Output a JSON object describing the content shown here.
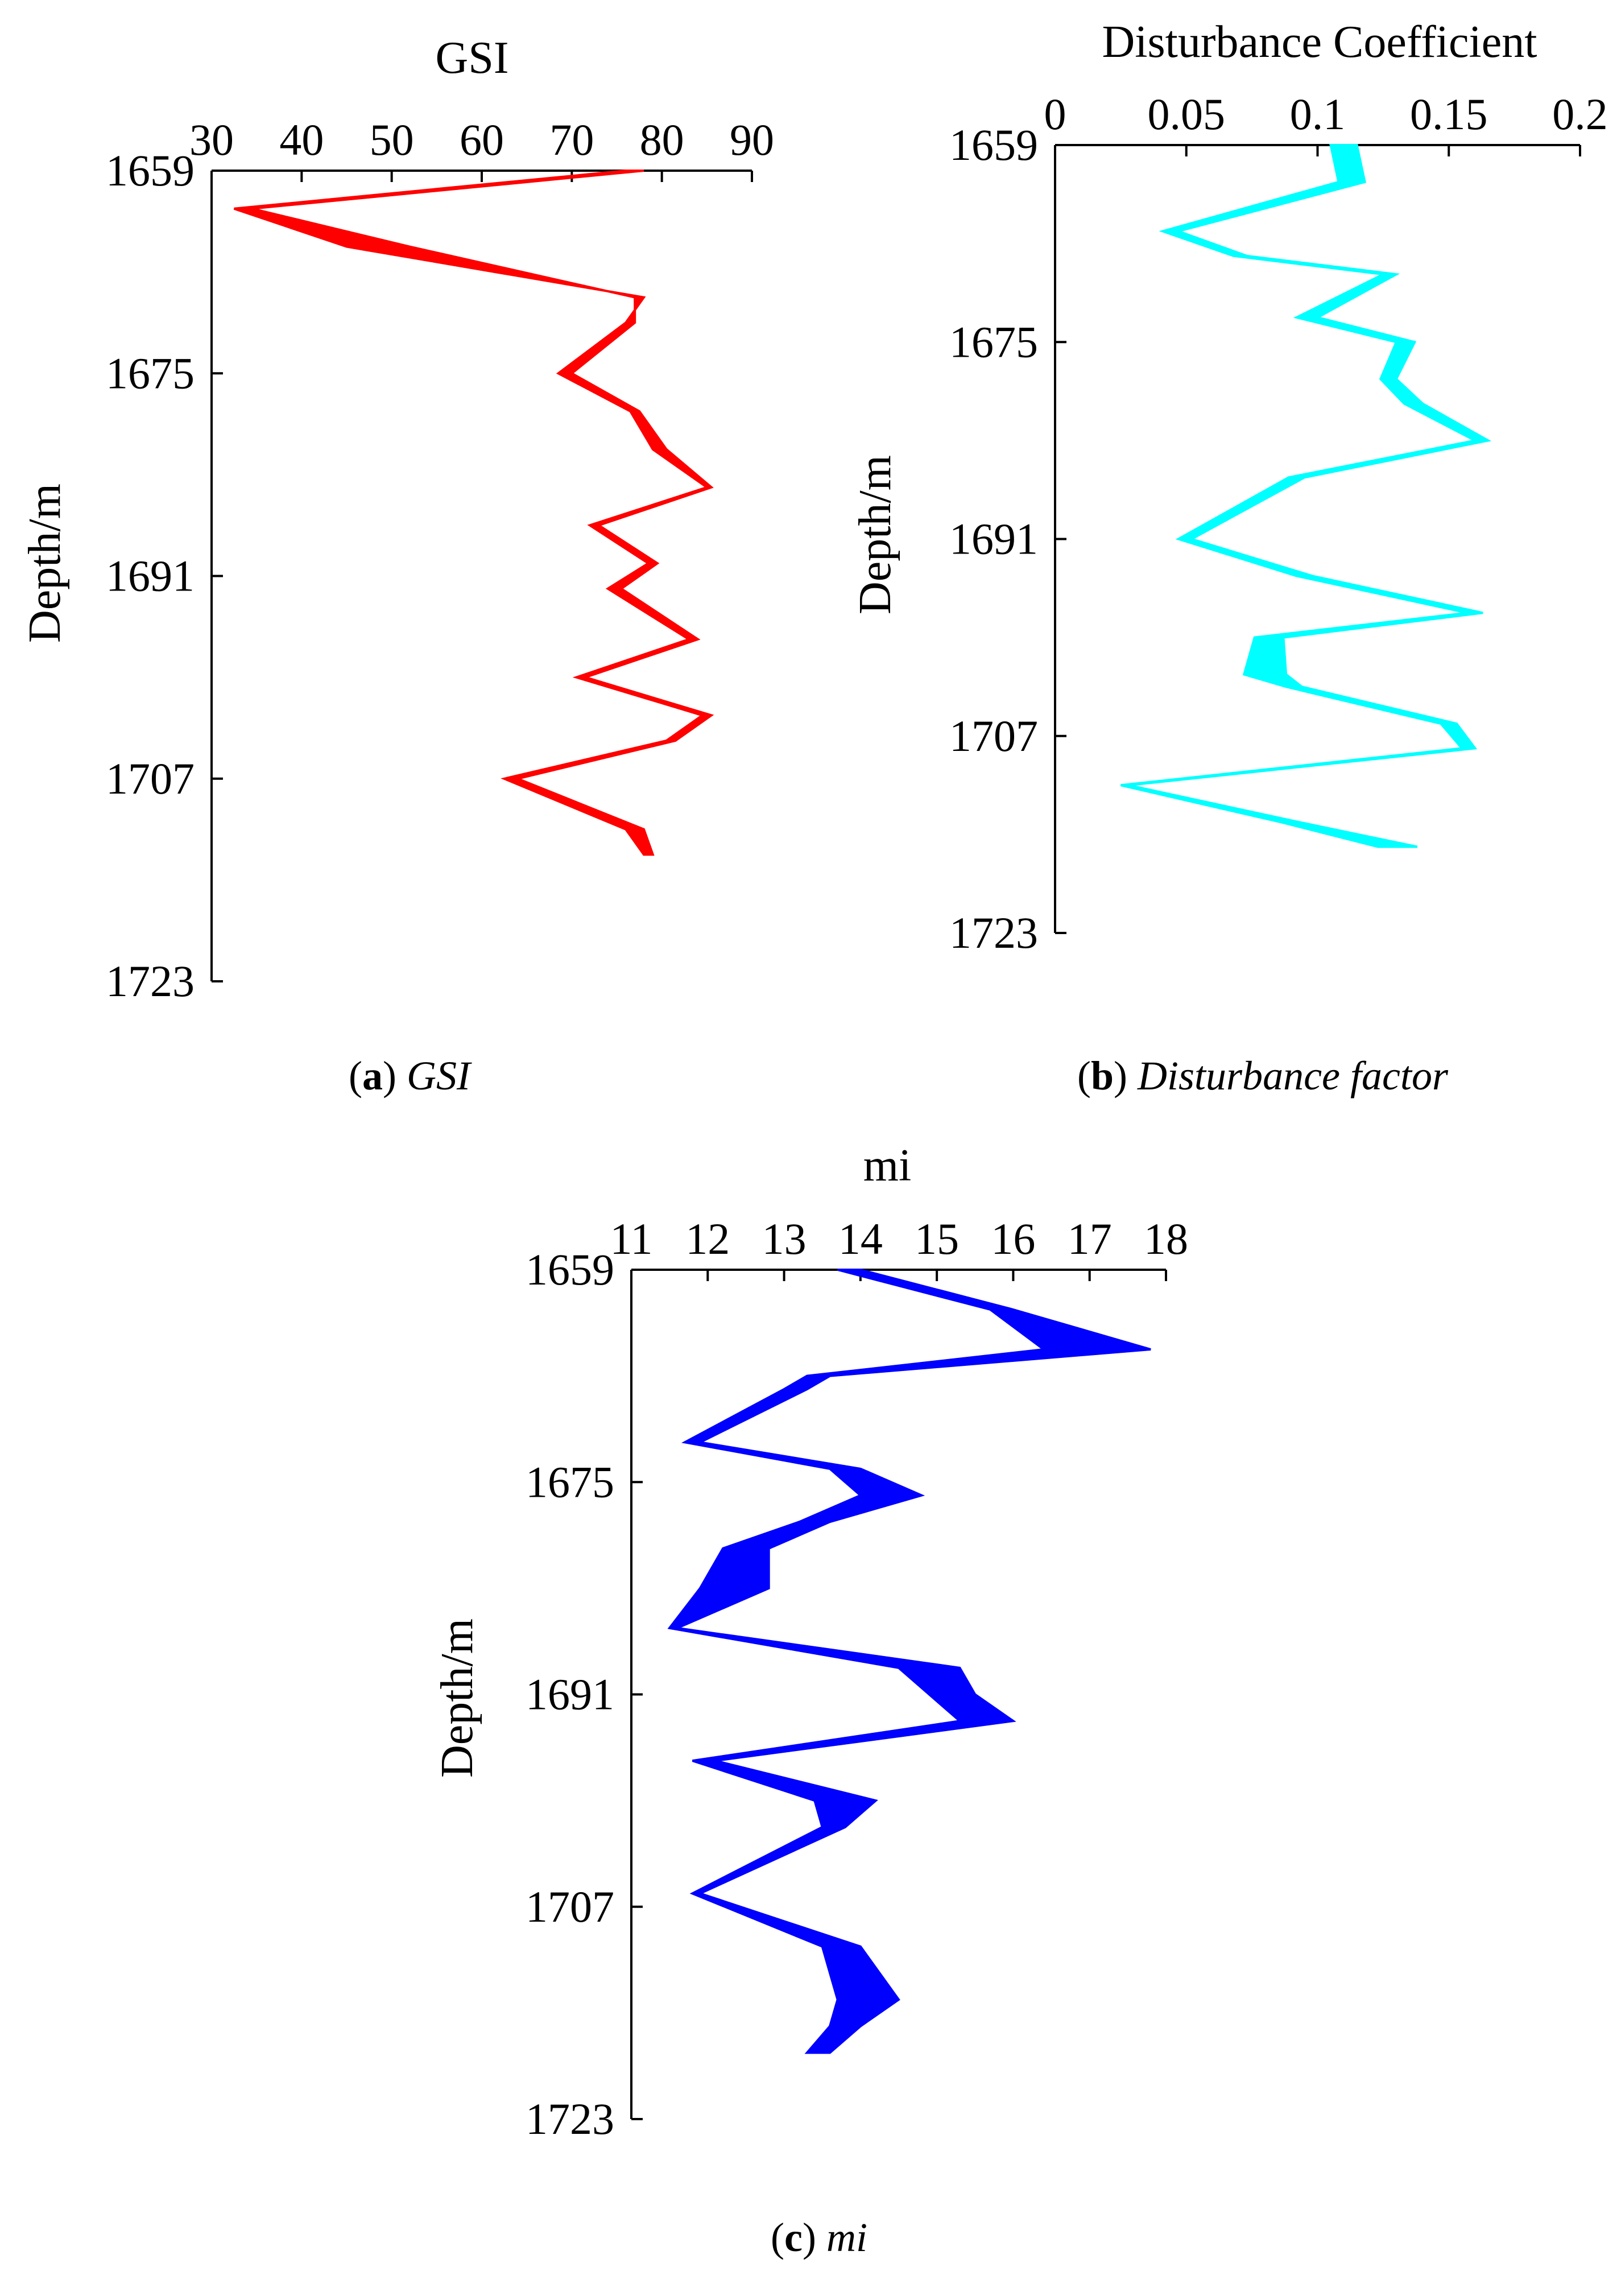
{
  "chart_data": [
    {
      "id": "a",
      "type": "area",
      "xlabel": "GSI",
      "ylabel": "Depth/m",
      "xlim": [
        30,
        90
      ],
      "ylim": [
        1659,
        1723
      ],
      "x_ticks": [
        "30",
        "40",
        "50",
        "60",
        "70",
        "80",
        "90"
      ],
      "y_ticks": [
        "1659",
        "1675",
        "1691",
        "1707",
        "1723"
      ],
      "caption_letter": "a",
      "caption_text": "GSI",
      "color": "#ff0000",
      "series": [
        {
          "values": [
            [
              1659,
              76
            ],
            [
              1662,
              32.5
            ],
            [
              1665,
              45
            ],
            [
              1669,
              78
            ],
            [
              1671,
              76
            ],
            [
              1675,
              68.5
            ],
            [
              1678,
              76.5
            ],
            [
              1681,
              79
            ],
            [
              1684,
              85
            ],
            [
              1687,
              72
            ],
            [
              1690,
              78.5
            ],
            [
              1692,
              74
            ],
            [
              1696,
              83
            ],
            [
              1699,
              70.5
            ],
            [
              1702,
              84.5
            ],
            [
              1704,
              80.5
            ],
            [
              1707,
              62.5
            ],
            [
              1711,
              76
            ],
            [
              1713,
              78
            ]
          ]
        },
        {
          "values": [
            [
              1659,
              78
            ],
            [
              1662,
              34.5
            ],
            [
              1665,
              52
            ],
            [
              1669,
              77
            ],
            [
              1671,
              77
            ],
            [
              1675,
              70
            ],
            [
              1678,
              77.5
            ],
            [
              1681,
              80.5
            ],
            [
              1684,
              85.5
            ],
            [
              1687,
              73
            ],
            [
              1690,
              79.5
            ],
            [
              1692,
              75.5
            ],
            [
              1696,
              84
            ],
            [
              1699,
              71.5
            ],
            [
              1702,
              85.5
            ],
            [
              1704,
              81.5
            ],
            [
              1707,
              64
            ],
            [
              1711,
              78
            ],
            [
              1713,
              79
            ]
          ]
        }
      ]
    },
    {
      "id": "b",
      "type": "area",
      "xlabel": "Disturbance Coefficient",
      "ylabel": "Depth/m",
      "xlim": [
        0,
        0.2
      ],
      "ylim": [
        1659,
        1723
      ],
      "x_ticks": [
        "0",
        "0.05",
        "0.1",
        "0.15",
        "0.2"
      ],
      "y_ticks": [
        "1659",
        "1675",
        "1691",
        "1707",
        "1723"
      ],
      "caption_letter": "b",
      "caption_text": "Disturbance factor",
      "color": "#00ffff",
      "series": [
        {
          "values": [
            [
              1659,
              0.105
            ],
            [
              1662,
              0.108
            ],
            [
              1666,
              0.041
            ],
            [
              1668,
              0.068
            ],
            [
              1669.5,
              0.125
            ],
            [
              1673,
              0.092
            ],
            [
              1675,
              0.13
            ],
            [
              1678,
              0.124
            ],
            [
              1680,
              0.133
            ],
            [
              1683,
              0.16
            ],
            [
              1686,
              0.089
            ],
            [
              1691,
              0.047
            ],
            [
              1694,
              0.092
            ],
            [
              1697,
              0.157
            ],
            [
              1699,
              0.076
            ],
            [
              1702,
              0.072
            ],
            [
              1703,
              0.088
            ],
            [
              1706,
              0.147
            ],
            [
              1708,
              0.155
            ],
            [
              1711,
              0.025
            ],
            [
              1714,
              0.086
            ],
            [
              1716,
              0.123
            ]
          ]
        },
        {
          "values": [
            [
              1659,
              0.115
            ],
            [
              1662,
              0.118
            ],
            [
              1666,
              0.047
            ],
            [
              1668,
              0.073
            ],
            [
              1669.5,
              0.13
            ],
            [
              1673,
              0.1
            ],
            [
              1675,
              0.137
            ],
            [
              1678,
              0.13
            ],
            [
              1680,
              0.14
            ],
            [
              1683,
              0.165
            ],
            [
              1686,
              0.095
            ],
            [
              1691,
              0.052
            ],
            [
              1694,
              0.098
            ],
            [
              1697,
              0.163
            ],
            [
              1699,
              0.087
            ],
            [
              1702,
              0.088
            ],
            [
              1703,
              0.094
            ],
            [
              1706,
              0.153
            ],
            [
              1708,
              0.16
            ],
            [
              1711,
              0.028
            ],
            [
              1714,
              0.093
            ],
            [
              1716,
              0.138
            ]
          ]
        }
      ]
    },
    {
      "id": "c",
      "type": "area",
      "xlabel": "mi",
      "ylabel": "Depth/m",
      "xlim": [
        11,
        18
      ],
      "ylim": [
        1659,
        1723
      ],
      "x_ticks": [
        "11",
        "12",
        "13",
        "14",
        "15",
        "16",
        "17",
        "18"
      ],
      "y_ticks": [
        "1659",
        "1675",
        "1691",
        "1707",
        "1723"
      ],
      "caption_letter": "c",
      "caption_text": "mi",
      "color": "#0000ff",
      "series": [
        {
          "values": [
            [
              1659,
              13.7
            ],
            [
              1662,
              15.7
            ],
            [
              1665,
              16.4
            ],
            [
              1667,
              13.3
            ],
            [
              1668,
              13.0
            ],
            [
              1672,
              11.7
            ],
            [
              1674,
              13.6
            ],
            [
              1676,
              14.0
            ],
            [
              1678,
              13.2
            ],
            [
              1680,
              12.2
            ],
            [
              1683,
              11.9
            ],
            [
              1686,
              11.5
            ],
            [
              1689,
              14.5
            ],
            [
              1691,
              14.9
            ],
            [
              1693,
              15.3
            ],
            [
              1696,
              11.8
            ],
            [
              1699,
              13.4
            ],
            [
              1701,
              13.5
            ],
            [
              1706,
              11.8
            ],
            [
              1710,
              13.5
            ],
            [
              1714,
              13.7
            ],
            [
              1716,
              13.6
            ],
            [
              1718,
              13.3
            ]
          ]
        },
        {
          "values": [
            [
              1659,
              14.0
            ],
            [
              1662,
              16.0
            ],
            [
              1665,
              17.8
            ],
            [
              1667,
              13.6
            ],
            [
              1668,
              13.3
            ],
            [
              1672,
              11.9
            ],
            [
              1674,
              14.0
            ],
            [
              1676,
              14.8
            ],
            [
              1678,
              13.6
            ],
            [
              1680,
              12.8
            ],
            [
              1683,
              12.8
            ],
            [
              1686,
              11.6
            ],
            [
              1689,
              15.3
            ],
            [
              1691,
              15.5
            ],
            [
              1693,
              16.0
            ],
            [
              1696,
              12.1
            ],
            [
              1699,
              14.2
            ],
            [
              1701,
              13.8
            ],
            [
              1706,
              11.9
            ],
            [
              1710,
              14.0
            ],
            [
              1714,
              14.5
            ],
            [
              1716,
              14.0
            ],
            [
              1718,
              13.6
            ]
          ]
        }
      ]
    }
  ]
}
